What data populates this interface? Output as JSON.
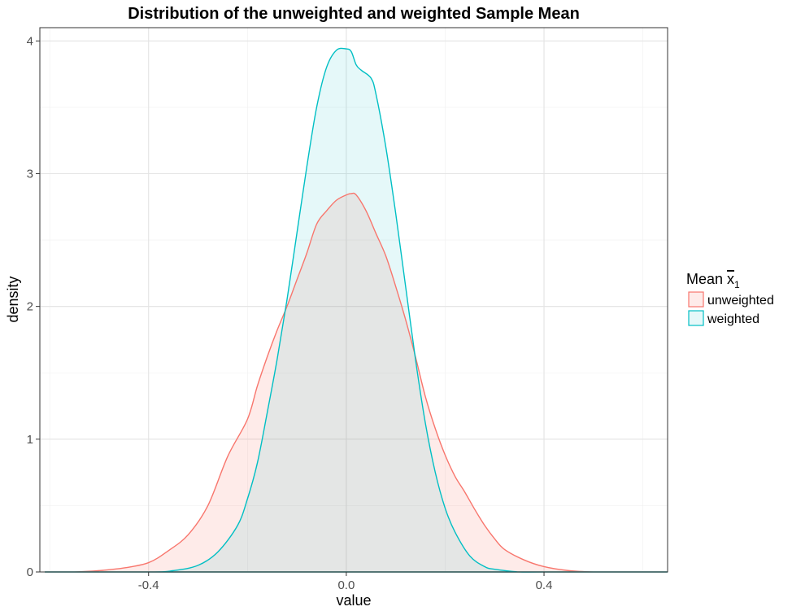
{
  "chart_data": {
    "type": "area",
    "title": "Distribution of the unweighted and weighted Sample Mean",
    "xlabel": "value",
    "ylabel": "density",
    "xlim": [
      -0.62,
      0.65
    ],
    "ylim": [
      0,
      4.1
    ],
    "x_ticks": [
      -0.4,
      0.0,
      0.4
    ],
    "x_tick_labels": [
      "-0.4",
      "0.0",
      "0.4"
    ],
    "y_ticks": [
      0,
      1,
      2,
      3,
      4
    ],
    "y_tick_labels": [
      "0",
      "1",
      "2",
      "3",
      "4"
    ],
    "grid": true,
    "legend": {
      "title_main": "Mean ",
      "title_symbol": "x",
      "title_subscript": "1",
      "placement": "right"
    },
    "series": [
      {
        "name": "unweighted",
        "line_color": "#F8766D",
        "fill_color": "#F8766D",
        "fill_opacity": 0.15,
        "x": [
          -0.61,
          -0.55,
          -0.5,
          -0.45,
          -0.4,
          -0.36,
          -0.32,
          -0.28,
          -0.24,
          -0.2,
          -0.18,
          -0.16,
          -0.14,
          -0.12,
          -0.1,
          -0.08,
          -0.06,
          -0.04,
          -0.02,
          0.0,
          0.01,
          0.02,
          0.04,
          0.06,
          0.08,
          0.1,
          0.12,
          0.14,
          0.16,
          0.18,
          0.2,
          0.22,
          0.24,
          0.26,
          0.28,
          0.3,
          0.32,
          0.36,
          0.4,
          0.45,
          0.5,
          0.55,
          0.65
        ],
        "y": [
          0.0,
          0.0,
          0.01,
          0.03,
          0.07,
          0.16,
          0.28,
          0.5,
          0.87,
          1.15,
          1.4,
          1.62,
          1.82,
          2.0,
          2.2,
          2.4,
          2.62,
          2.72,
          2.8,
          2.84,
          2.85,
          2.84,
          2.72,
          2.55,
          2.38,
          2.15,
          1.9,
          1.62,
          1.32,
          1.08,
          0.88,
          0.72,
          0.6,
          0.47,
          0.35,
          0.25,
          0.17,
          0.09,
          0.04,
          0.01,
          0.0,
          0.0,
          0.0
        ]
      },
      {
        "name": "weighted",
        "line_color": "#00BFC4",
        "fill_color": "#00BFC4",
        "fill_opacity": 0.1,
        "x": [
          -0.61,
          -0.4,
          -0.35,
          -0.3,
          -0.26,
          -0.22,
          -0.2,
          -0.18,
          -0.16,
          -0.14,
          -0.12,
          -0.1,
          -0.08,
          -0.06,
          -0.04,
          -0.02,
          0.0,
          0.01,
          0.02,
          0.03,
          0.05,
          0.06,
          0.08,
          0.1,
          0.12,
          0.14,
          0.16,
          0.18,
          0.2,
          0.22,
          0.25,
          0.28,
          0.3,
          0.35,
          0.4,
          0.65
        ],
        "y": [
          0.0,
          0.0,
          0.01,
          0.05,
          0.15,
          0.35,
          0.55,
          0.82,
          1.2,
          1.6,
          2.05,
          2.55,
          3.05,
          3.5,
          3.8,
          3.93,
          3.94,
          3.92,
          3.82,
          3.78,
          3.72,
          3.6,
          3.2,
          2.7,
          2.15,
          1.6,
          1.12,
          0.75,
          0.48,
          0.3,
          0.12,
          0.04,
          0.02,
          0.0,
          0.0,
          0.0
        ]
      }
    ]
  }
}
